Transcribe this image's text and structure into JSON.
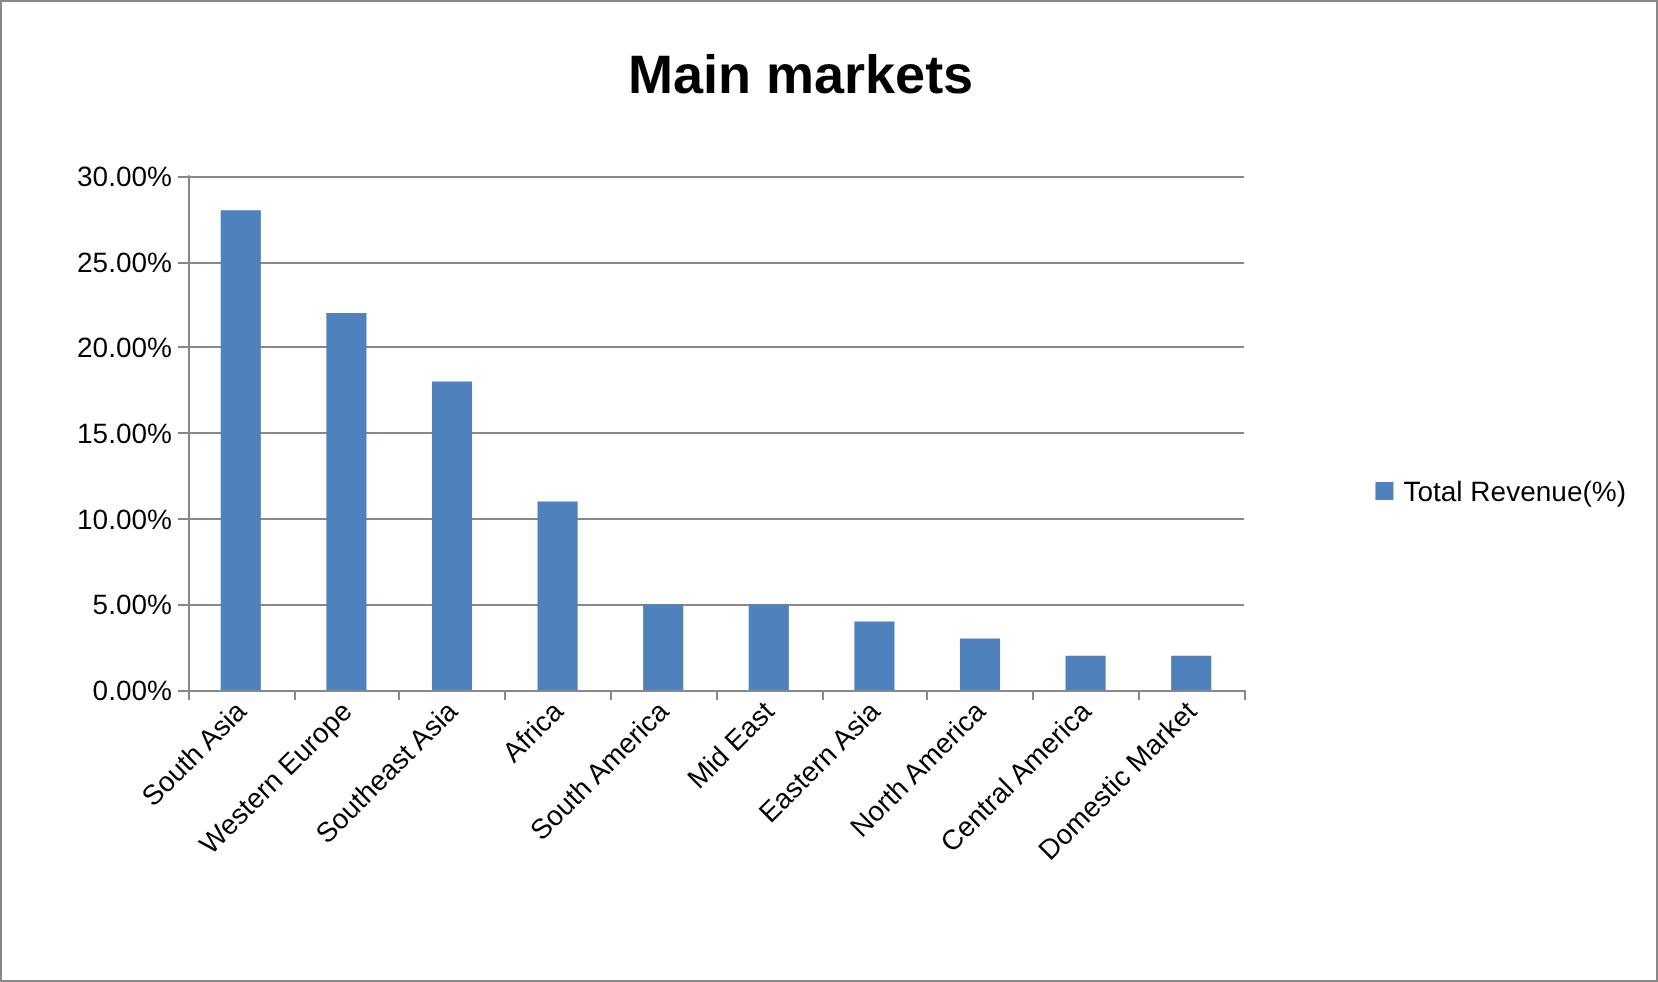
{
  "chart_data": {
    "type": "bar",
    "title": "Main markets",
    "categories": [
      "South Asia",
      "Western Europe",
      "Southeast Asia",
      "Africa",
      "South America",
      "Mid East",
      "Eastern Asia",
      "North America",
      "Central America",
      "Domestic Market"
    ],
    "series": [
      {
        "name": "Total Revenue(%)",
        "color": "#4f81bd",
        "values": [
          28,
          22,
          18,
          11,
          5,
          5,
          4,
          3,
          2,
          2
        ]
      }
    ],
    "ylim": [
      0,
      30
    ],
    "yticks": [
      {
        "value": 0,
        "label": "0.00%"
      },
      {
        "value": 5,
        "label": "5.00%"
      },
      {
        "value": 10,
        "label": "10.00%"
      },
      {
        "value": 15,
        "label": "15.00%"
      },
      {
        "value": 20,
        "label": "20.00%"
      },
      {
        "value": 25,
        "label": "25.00%"
      },
      {
        "value": 30,
        "label": "30.00%"
      }
    ],
    "grid": "y",
    "legend": "right"
  }
}
